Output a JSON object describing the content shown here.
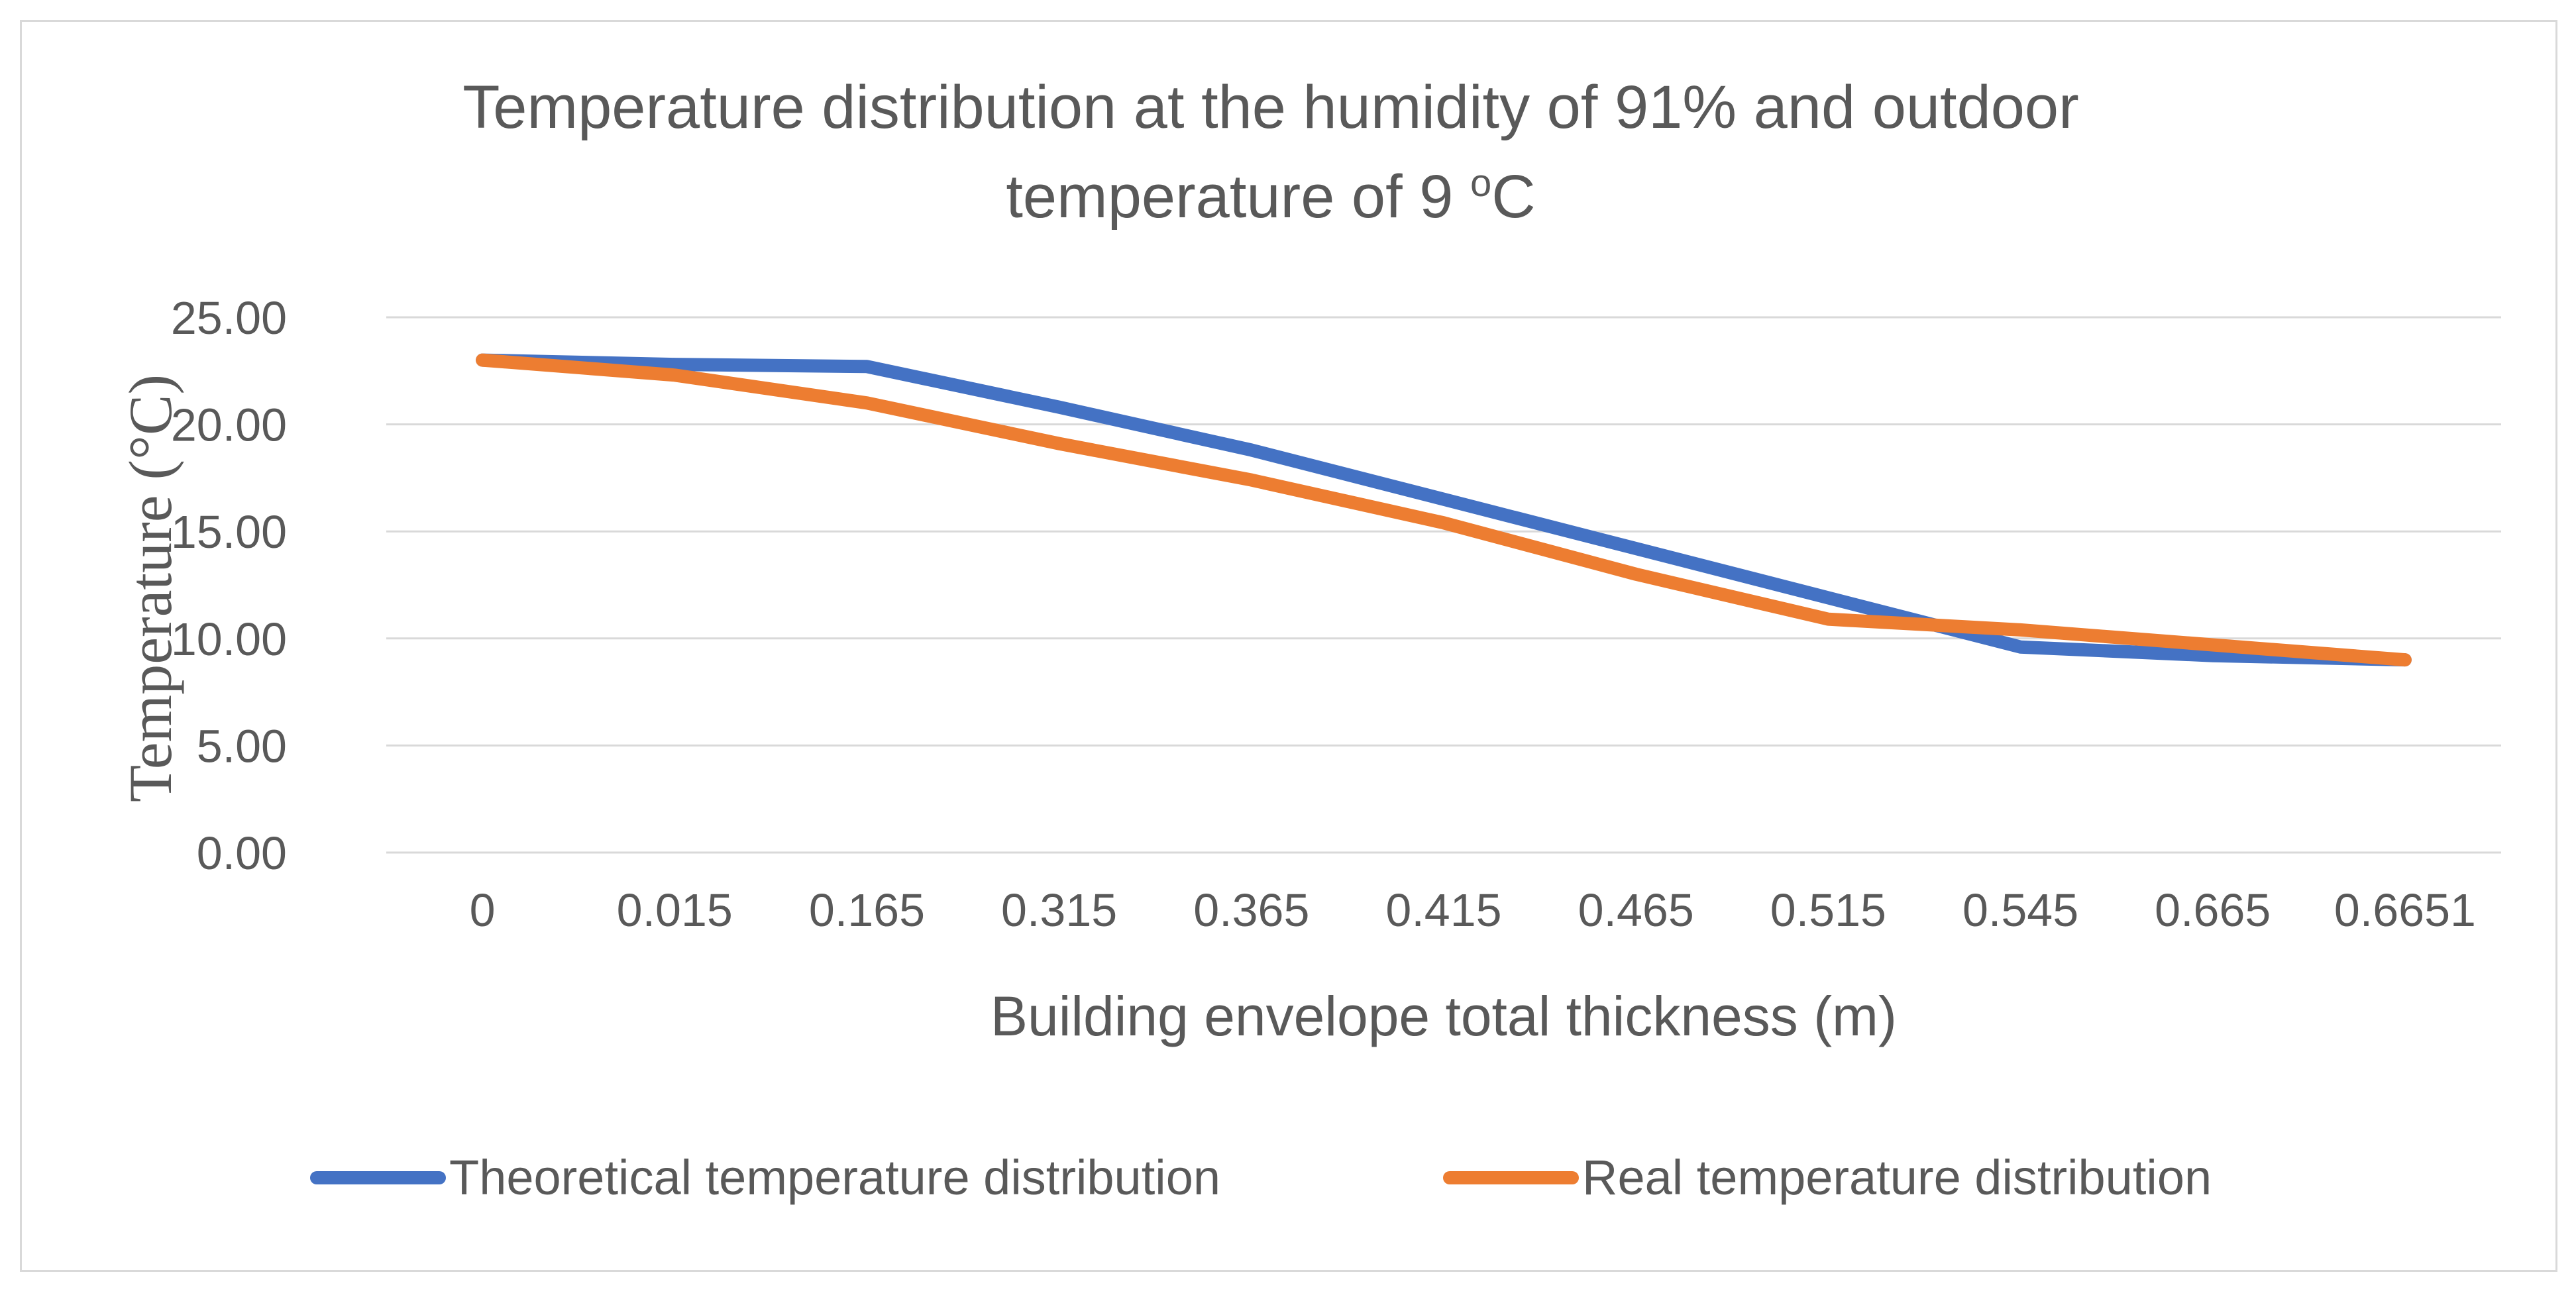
{
  "chart_data": {
    "type": "line",
    "title_line1": "Temperature distribution at the humidity of 91% and outdoor",
    "title_line2": "temperature of 9 ",
    "title_unit_sup": "o",
    "title_unit": "C",
    "xlabel": "Building envelope total thickness (m)",
    "ylabel": "Temperature (°C)",
    "categories": [
      "0",
      "0.015",
      "0.165",
      "0.315",
      "0.365",
      "0.415",
      "0.465",
      "0.515",
      "0.545",
      "0.665",
      "0.6651"
    ],
    "y_ticks": [
      "0.00",
      "5.00",
      "10.00",
      "15.00",
      "20.00",
      "25.00"
    ],
    "ylim": [
      0,
      25
    ],
    "grid": true,
    "legend_position": "bottom",
    "series": [
      {
        "name": "Theoretical temperature distribution",
        "color": "#4472C4",
        "values": [
          23.0,
          22.8,
          22.7,
          20.8,
          18.8,
          16.5,
          14.2,
          11.9,
          9.6,
          9.2,
          9.0
        ]
      },
      {
        "name": "Real temperature distribution",
        "color": "#ED7D31",
        "values": [
          23.0,
          22.3,
          21.0,
          19.1,
          17.4,
          15.4,
          13.0,
          10.9,
          10.4,
          9.7,
          9.0
        ]
      }
    ]
  }
}
